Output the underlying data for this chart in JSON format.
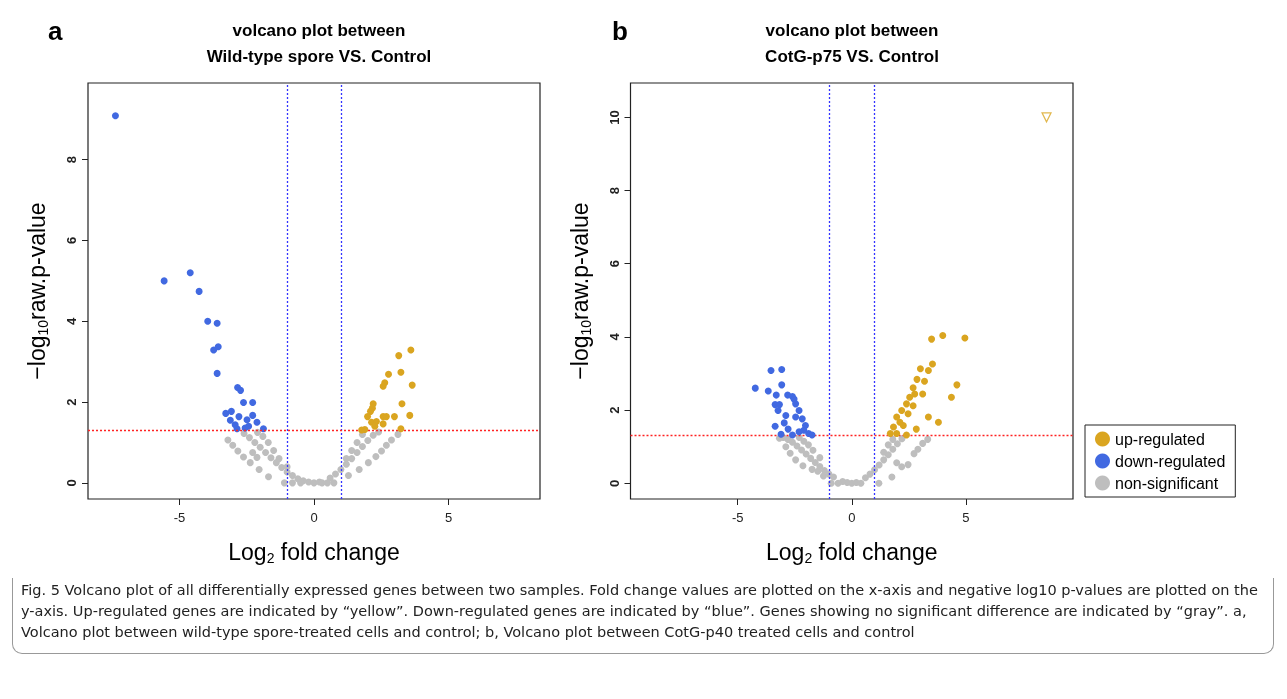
{
  "chart_data": [
    {
      "type": "scatter",
      "title": "volcano plot between\nWild-type spore VS. Control",
      "xlabel": "Log$_{2}$ fold change",
      "ylabel": "−log$_{10}$raw.p-value",
      "annotations": [
        "a"
      ],
      "xlim": [
        -8.4,
        8.4
      ],
      "xticks": [
        -5,
        0,
        5
      ],
      "ylim": [
        -0.4,
        9.9
      ],
      "yticks": [
        0,
        2,
        4,
        6,
        8
      ],
      "marker": "circle",
      "grid": false,
      "ref_lines": [
        {
          "axis": "x",
          "value": -1,
          "color": "#3333ff",
          "line_style": "dotted"
        },
        {
          "axis": "x",
          "value": 1,
          "color": "#3333ff",
          "line_style": "dotted"
        },
        {
          "axis": "y",
          "value": 1.3,
          "color": "#ff2222",
          "line_style": "dotted"
        }
      ],
      "series": [
        {
          "color": "#daa520",
          "x": [
            3.6,
            3.15,
            2.77,
            2.63,
            2.57,
            3.23,
            3.65,
            3.27,
            2.2,
            2.17,
            2.1,
            1.99,
            2.57,
            2.69,
            2.99,
            3.56,
            2.14,
            2.32,
            2.57,
            2.26,
            1.89,
            1.77,
            3.23
          ],
          "values": [
            3.29,
            3.15,
            2.69,
            2.48,
            2.39,
            2.74,
            2.42,
            1.96,
            1.96,
            1.85,
            1.77,
            1.64,
            1.64,
            1.64,
            1.64,
            1.67,
            1.5,
            1.52,
            1.46,
            1.4,
            1.32,
            1.31,
            1.34
          ]
        },
        {
          "color": "#4169e1",
          "x": [
            -7.38,
            -5.57,
            -4.6,
            -4.27,
            -3.95,
            -3.6,
            -3.73,
            -3.56,
            -3.6,
            -2.84,
            -2.73,
            -2.62,
            -2.28,
            -3.28,
            -3.07,
            -3.11,
            -2.93,
            -2.79,
            -2.49,
            -2.28,
            -2.12,
            -1.88,
            -2.86,
            -2.43,
            -2.56
          ],
          "values": [
            9.09,
            5.0,
            5.2,
            4.74,
            4.0,
            3.95,
            3.29,
            3.37,
            2.71,
            2.36,
            2.29,
            1.99,
            1.99,
            1.72,
            1.77,
            1.55,
            1.44,
            1.64,
            1.56,
            1.67,
            1.5,
            1.34,
            1.34,
            1.4,
            1.36
          ]
        },
        {
          "color": "#bebebe",
          "x": [
            -3.2,
            -3.02,
            -2.83,
            -2.62,
            -2.37,
            -2.04,
            -1.69,
            -2.12,
            -2.28,
            -0.2,
            -0.4,
            -0.6,
            -0.8,
            -1.0,
            -1.2,
            -1.4,
            -1.6,
            -1.8,
            -2.0,
            -2.2,
            -2.4,
            -2.6,
            -1.5,
            -1.7,
            -1.9,
            -2.1,
            -1.3,
            -1.0,
            -0.5,
            -1.1,
            -0.8,
            0,
            0.2,
            0.4,
            0.6,
            0.8,
            1.0,
            1.2,
            1.4,
            1.6,
            1.8,
            2.0,
            2.2,
            2.4,
            1.4,
            1.6,
            1.8,
            1.2,
            0.5,
            0.3,
            0.74,
            1.28,
            1.68,
            2.02,
            2.3,
            2.51,
            2.69,
            2.88,
            3.12
          ],
          "values": [
            1.06,
            0.93,
            0.79,
            0.64,
            0.5,
            0.33,
            0.15,
            0.63,
            0.75,
            0.02,
            0.05,
            0.1,
            0.18,
            0.27,
            0.38,
            0.5,
            0.62,
            0.75,
            0.88,
            1.0,
            1.12,
            1.22,
            0.8,
            1.0,
            1.15,
            1.25,
            0.6,
            0.4,
            0,
            0,
            0,
            0,
            0.02,
            null,
            0.12,
            0.22,
            0.33,
            0.46,
            0.6,
            0.75,
            0.9,
            1.05,
            1.18,
            1.26,
            0.8,
            1.0,
            1.2,
            0.6,
            0,
            0,
            0,
            0.18,
            0.33,
            0.5,
            0.65,
            0.79,
            0.93,
            1.06,
            1.2
          ]
        }
      ]
    },
    {
      "type": "scatter",
      "title": "volcano plot between\nCotG-p75 VS. Control",
      "xlabel": "Log$_{2}$ fold change",
      "ylabel": "−log$_{10}$raw.p-value",
      "annotations": [
        "b",
        "Fig. 5  Volcano plot of all differentially expressed genes between two samples. Fold change values are plotted on the x-axis and negative log10 p-values are plotted on the y-axis. Up-regulated genes are indicated by “yellow”. Down-regulated genes are indicated by “blue”. Genes showing no significant difference are indicated by “gray”. a, Volcano plot between wild-type spore-treated cells and control; b, Volcano plot between CotG-p40 treated cells and control"
      ],
      "xlim": [
        -9.7,
        9.7
      ],
      "xticks": [
        -5,
        0,
        5
      ],
      "ylim": [
        -0.43,
        10.94
      ],
      "yticks": [
        0,
        2,
        4,
        6,
        8,
        10
      ],
      "marker": "circle",
      "grid": false,
      "legend": "right",
      "ref_lines": [
        {
          "axis": "x",
          "value": -1,
          "color": "#3333ff",
          "line_style": "dotted"
        },
        {
          "axis": "x",
          "value": 1,
          "color": "#3333ff",
          "line_style": "dotted"
        },
        {
          "axis": "y",
          "value": 1.3,
          "color": "#ff2222",
          "line_style": "dotted"
        }
      ],
      "series": [
        {
          "name": "up-regulated",
          "color": "#daa520",
          "x": [
            3.5,
            3.99,
            4.96,
            3.54,
            3.01,
            3.36,
            2.86,
            3.19,
            2.69,
            3.11,
            4.61,
            4.37,
            2.54,
            2.76,
            2.4,
            2.69,
            2.19,
            2.47,
            3.36,
            3.8,
            1.97,
            2.11,
            1.83,
            2.26,
            2.83,
            1.69,
            1.97,
            2.4
          ],
          "values": [
            3.94,
            4.04,
            3.97,
            3.26,
            3.13,
            3.08,
            2.84,
            2.79,
            2.61,
            2.44,
            2.69,
            2.35,
            2.35,
            2.44,
            2.17,
            2.12,
            1.99,
            1.9,
            1.81,
            1.67,
            1.81,
            1.67,
            1.54,
            1.58,
            1.48,
            1.36,
            1.36,
            1.32
          ]
        },
        {
          "name": "down-regulated",
          "color": "#4169e1",
          "x": [
            -4.23,
            -3.66,
            -3.54,
            -3.07,
            -3.07,
            -3.31,
            -2.81,
            -2.6,
            -3.36,
            -3.17,
            -3.23,
            -2.89,
            -2.96,
            -3.36,
            -2.79,
            -3.1,
            -2.46,
            -2.31,
            -2.46,
            -2.17,
            -2.03,
            -2.31,
            -1.89,
            -1.74,
            -2.53,
            -2.1,
            -2.6
          ],
          "values": [
            2.6,
            2.52,
            3.08,
            3.11,
            2.69,
            2.41,
            2.41,
            2.37,
            2.15,
            2.15,
            1.99,
            1.85,
            1.65,
            1.56,
            1.48,
            1.34,
            2.17,
            1.99,
            1.81,
            1.76,
            1.58,
            1.41,
            1.36,
            1.32,
            2.3,
            1.45,
            1.32
          ]
        },
        {
          "name": "non-significant",
          "color": "#bebebe",
          "x": [
            -3.17,
            -2.89,
            -2.7,
            -2.46,
            -2.14,
            -1.74,
            -1.24,
            -1.49,
            -0.2,
            -0.4,
            -0.6,
            -0.8,
            -1.0,
            -1.2,
            -1.4,
            -1.6,
            -1.8,
            -2.0,
            -2.2,
            -2.4,
            -2.6,
            -2.8,
            -3.0,
            -1.7,
            -1.9,
            -2.1,
            -2.3,
            -1.4,
            -0.6,
            -0.9,
            0,
            0.2,
            0.4,
            0.6,
            0.8,
            1.0,
            1.2,
            1.4,
            1.6,
            1.8,
            2.0,
            2.2,
            1.4,
            1.6,
            1.8,
            0.4,
            3.33,
            3.11,
            2.9,
            2.73,
            2.47,
            2.19,
            1.76,
            1.19,
            1.97
          ],
          "values": [
            1.23,
            1.0,
            0.82,
            0.64,
            0.48,
            0.38,
            0.2,
            0.33,
            0.02,
            0.05,
            null,
            0.17,
            0.25,
            0.35,
            0.46,
            0.57,
            0.68,
            0.8,
            0.91,
            1.02,
            1.12,
            1.2,
            1.25,
            0.9,
            1.05,
            1.15,
            1.25,
            0.7,
            0,
            0,
            0,
            0.02,
            null,
            0.15,
            0.25,
            0.37,
            0.5,
            0.64,
            0.78,
            0.93,
            1.08,
            1.22,
            0.85,
            1.05,
            1.2,
            0,
            1.2,
            1.09,
            0.93,
            0.81,
            0.51,
            0.45,
            0.17,
            0,
            0.56
          ]
        },
        {
          "color": "#daa520",
          "marker": "triangle",
          "x": [
            8.54
          ],
          "values": [
            10.0
          ]
        }
      ]
    }
  ]
}
